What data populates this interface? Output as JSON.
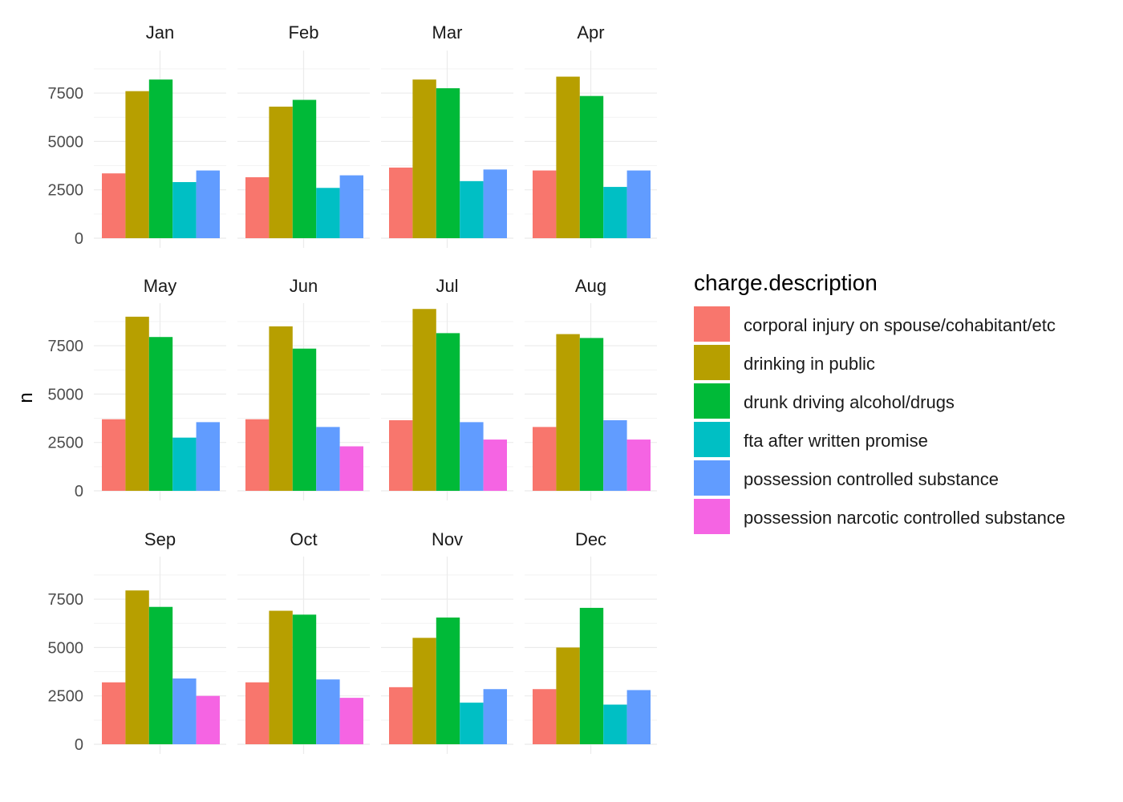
{
  "chart_data": {
    "type": "bar",
    "facet_by": "month",
    "ylabel": "n",
    "xlabel": "",
    "ylim": [
      0,
      9700
    ],
    "yticks": [
      0,
      2500,
      5000,
      7500
    ],
    "grid": true,
    "legend": {
      "title": "charge.description",
      "position": "right",
      "entries": [
        {
          "name": "corporal injury on spouse/cohabitant/etc",
          "color": "#F8766D"
        },
        {
          "name": "drinking in public",
          "color": "#B79F00"
        },
        {
          "name": "drunk driving alcohol/drugs",
          "color": "#00BA38"
        },
        {
          "name": "fta after written promise",
          "color": "#00BFC4"
        },
        {
          "name": "possession controlled substance",
          "color": "#619CFF"
        },
        {
          "name": "possession narcotic controlled substance",
          "color": "#F564E3"
        }
      ]
    },
    "panels": [
      {
        "month": "Jan",
        "bars": [
          3350,
          7600,
          8200,
          2900,
          3500
        ]
      },
      {
        "month": "Feb",
        "bars": [
          3150,
          6800,
          7150,
          2600,
          3250
        ]
      },
      {
        "month": "Mar",
        "bars": [
          3650,
          8200,
          7750,
          2950,
          3550
        ]
      },
      {
        "month": "Apr",
        "bars": [
          3500,
          8350,
          7350,
          2650,
          3500
        ]
      },
      {
        "month": "May",
        "bars": [
          3700,
          9000,
          7950,
          2750,
          3550
        ]
      },
      {
        "month": "Jun",
        "bars": [
          3700,
          8500,
          7350,
          3300,
          2300
        ]
      },
      {
        "month": "Jul",
        "bars": [
          3650,
          9400,
          8150,
          3550,
          2650
        ]
      },
      {
        "month": "Aug",
        "bars": [
          3300,
          8100,
          7900,
          3650,
          2650
        ]
      },
      {
        "month": "Sep",
        "bars": [
          3200,
          7950,
          7100,
          3400,
          2500
        ]
      },
      {
        "month": "Oct",
        "bars": [
          3200,
          6900,
          6700,
          3350,
          2400
        ]
      },
      {
        "month": "Nov",
        "bars": [
          2950,
          5500,
          6550,
          2150,
          2850
        ]
      },
      {
        "month": "Dec",
        "bars": [
          2850,
          5000,
          7050,
          2050,
          2800
        ]
      }
    ],
    "panel_series": [
      [
        0,
        1,
        2,
        3,
        4
      ],
      [
        0,
        1,
        2,
        3,
        4
      ],
      [
        0,
        1,
        2,
        3,
        4
      ],
      [
        0,
        1,
        2,
        3,
        4
      ],
      [
        0,
        1,
        2,
        3,
        4
      ],
      [
        0,
        1,
        2,
        4,
        5
      ],
      [
        0,
        1,
        2,
        4,
        5
      ],
      [
        0,
        1,
        2,
        4,
        5
      ],
      [
        0,
        1,
        2,
        4,
        5
      ],
      [
        0,
        1,
        2,
        4,
        5
      ],
      [
        0,
        1,
        2,
        3,
        4
      ],
      [
        0,
        1,
        2,
        3,
        4
      ]
    ]
  }
}
